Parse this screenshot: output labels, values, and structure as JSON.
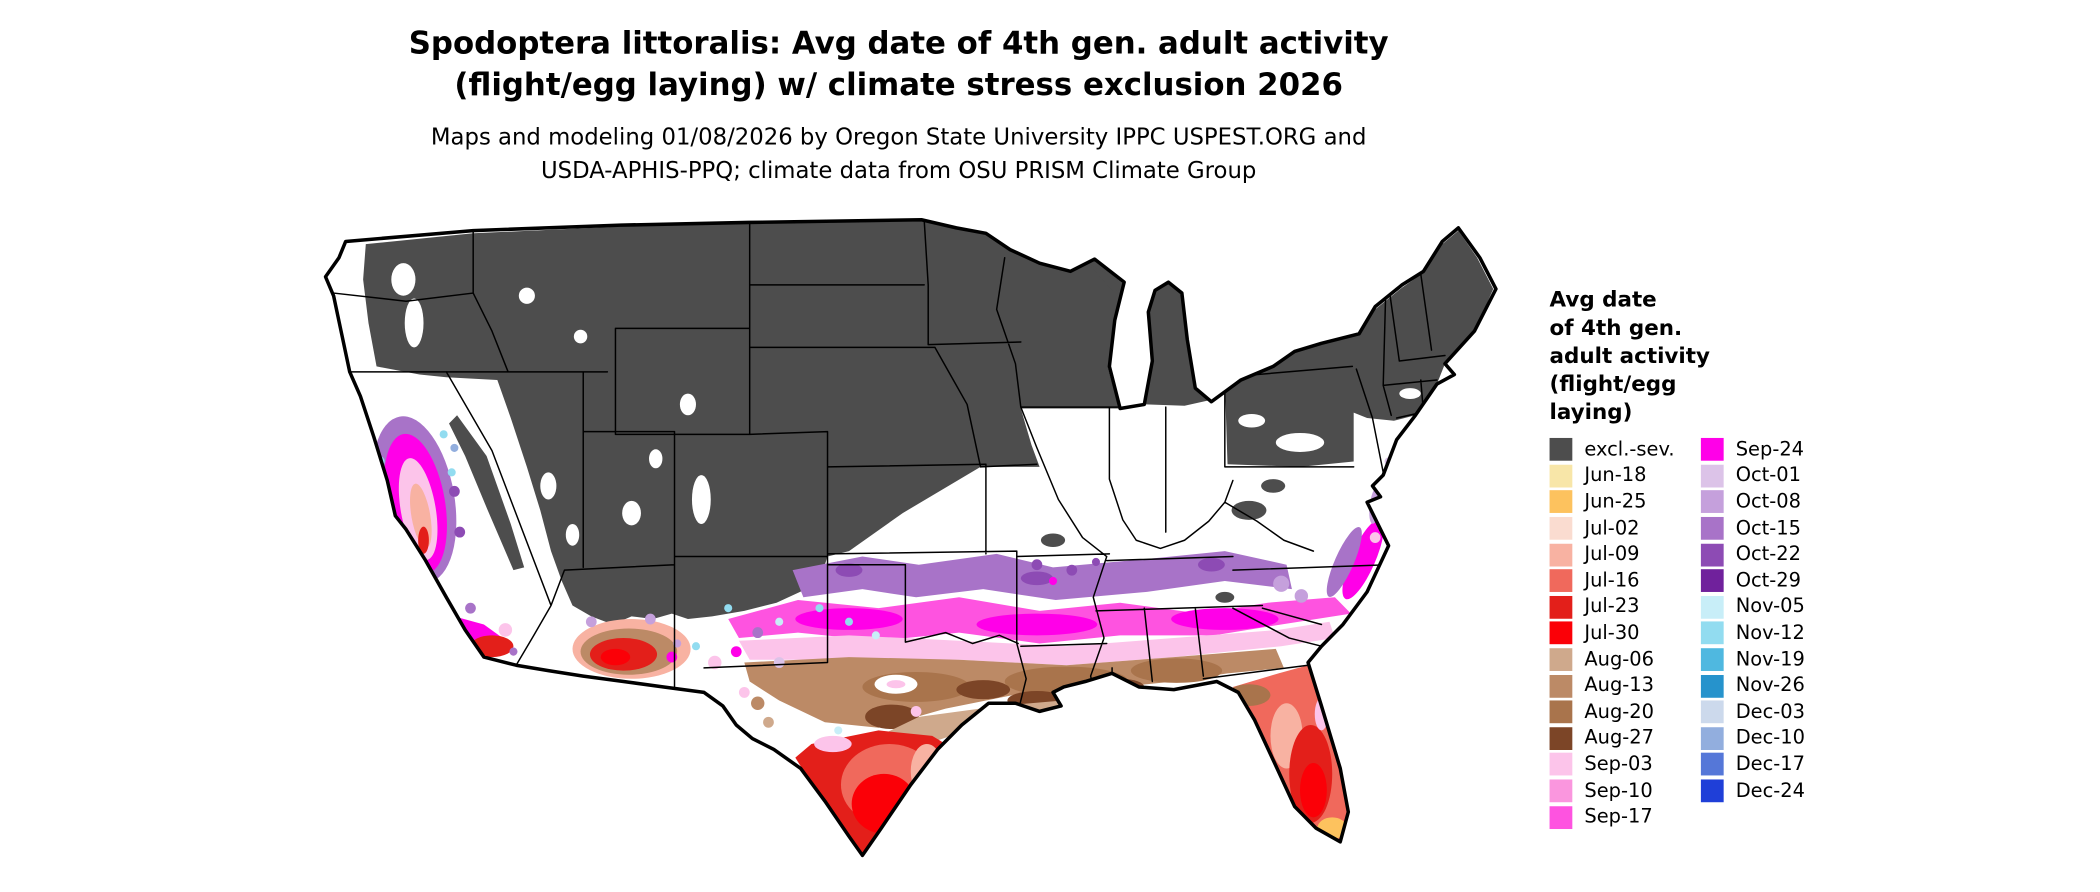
{
  "header": {
    "title_line1": "Spodoptera littoralis: Avg date of 4th gen. adult activity",
    "title_line2": "(flight/egg laying) w/ climate stress exclusion 2026",
    "subtitle_line1": "Maps and modeling 01/08/2026 by Oregon State University IPPC USPEST.ORG and",
    "subtitle_line2": "USDA-APHIS-PPQ; climate data from OSU PRISM Climate Group"
  },
  "map": {
    "description": "Continental US choropleth of average date of 4th generation adult activity",
    "background_color": "#ffffff",
    "border_color": "#000000"
  },
  "legend": {
    "title": "Avg date\nof 4th gen.\nadult activity\n(flight/egg\nlaying)",
    "column1": [
      {
        "label": "excl.-sev.",
        "color": "#4d4d4d"
      },
      {
        "label": "Jun-18",
        "color": "#f8e6a8"
      },
      {
        "label": "Jun-25",
        "color": "#fdc25e"
      },
      {
        "label": "Jul-02",
        "color": "#fadcd0"
      },
      {
        "label": "Jul-09",
        "color": "#f8b2a2"
      },
      {
        "label": "Jul-16",
        "color": "#f0695c"
      },
      {
        "label": "Jul-23",
        "color": "#e31f1a"
      },
      {
        "label": "Jul-30",
        "color": "#fb0007"
      },
      {
        "label": "Aug-06",
        "color": "#cfa98c"
      },
      {
        "label": "Aug-13",
        "color": "#bc8a66"
      },
      {
        "label": "Aug-20",
        "color": "#a9744c"
      },
      {
        "label": "Aug-27",
        "color": "#7c4527"
      },
      {
        "label": "Sep-03",
        "color": "#fcc4ea"
      },
      {
        "label": "Sep-10",
        "color": "#fa96de"
      },
      {
        "label": "Sep-17",
        "color": "#fe53e0"
      }
    ],
    "column2": [
      {
        "label": "Sep-24",
        "color": "#ff00e8"
      },
      {
        "label": "Oct-01",
        "color": "#dcc3e8"
      },
      {
        "label": "Oct-08",
        "color": "#c5a0dc"
      },
      {
        "label": "Oct-15",
        "color": "#a873c8"
      },
      {
        "label": "Oct-22",
        "color": "#8d4bb4"
      },
      {
        "label": "Oct-29",
        "color": "#70219c"
      },
      {
        "label": "Nov-05",
        "color": "#c8eef8"
      },
      {
        "label": "Nov-12",
        "color": "#92dcf0"
      },
      {
        "label": "Nov-19",
        "color": "#4fb8e0"
      },
      {
        "label": "Nov-26",
        "color": "#2693cc"
      },
      {
        "label": "Dec-03",
        "color": "#ccd9ec"
      },
      {
        "label": "Dec-10",
        "color": "#92aede"
      },
      {
        "label": "Dec-17",
        "color": "#5577d8"
      },
      {
        "label": "Dec-24",
        "color": "#1f3fd8"
      }
    ]
  }
}
